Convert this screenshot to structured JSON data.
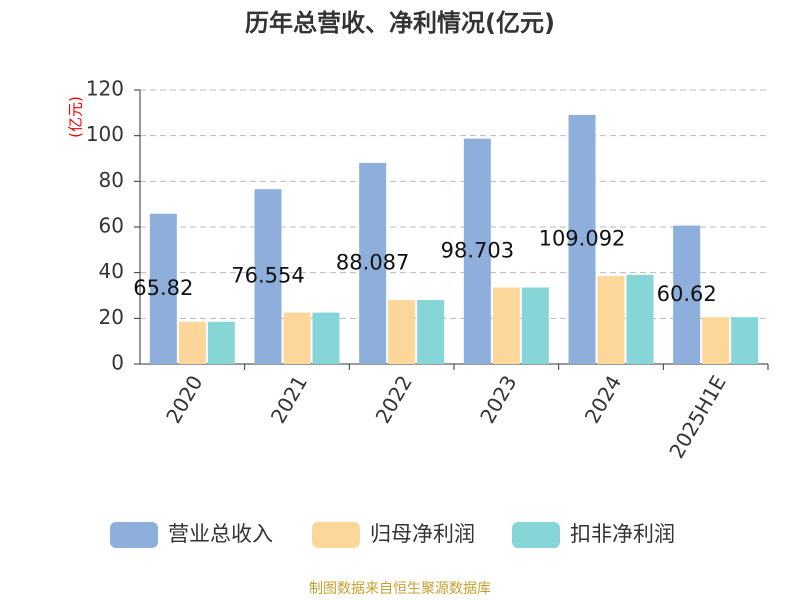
{
  "chart_data": {
    "type": "bar",
    "title": "历年总营收、净利情况(亿元)",
    "y_label": "(亿元)",
    "categories": [
      "2020",
      "2021",
      "2022",
      "2023",
      "2024",
      "2025H1E"
    ],
    "series": [
      {
        "name": "营业总收入",
        "color": "#8eaedb",
        "values": [
          65.82,
          76.554,
          88.087,
          98.703,
          109.092,
          60.62
        ],
        "show_labels": true
      },
      {
        "name": "归母净利润",
        "color": "#fdd69a",
        "values": [
          18.5,
          22.5,
          28,
          33.5,
          38.5,
          20.5
        ]
      },
      {
        "name": "扣非净利润",
        "color": "#86d6d8",
        "values": [
          18.5,
          22.5,
          28,
          33.5,
          39,
          20.5
        ]
      }
    ],
    "ylim": [
      0,
      120
    ],
    "yticks": [
      0,
      20,
      40,
      60,
      80,
      100,
      120
    ],
    "grid": true,
    "source": "制图数据来自恒生聚源数据库"
  }
}
